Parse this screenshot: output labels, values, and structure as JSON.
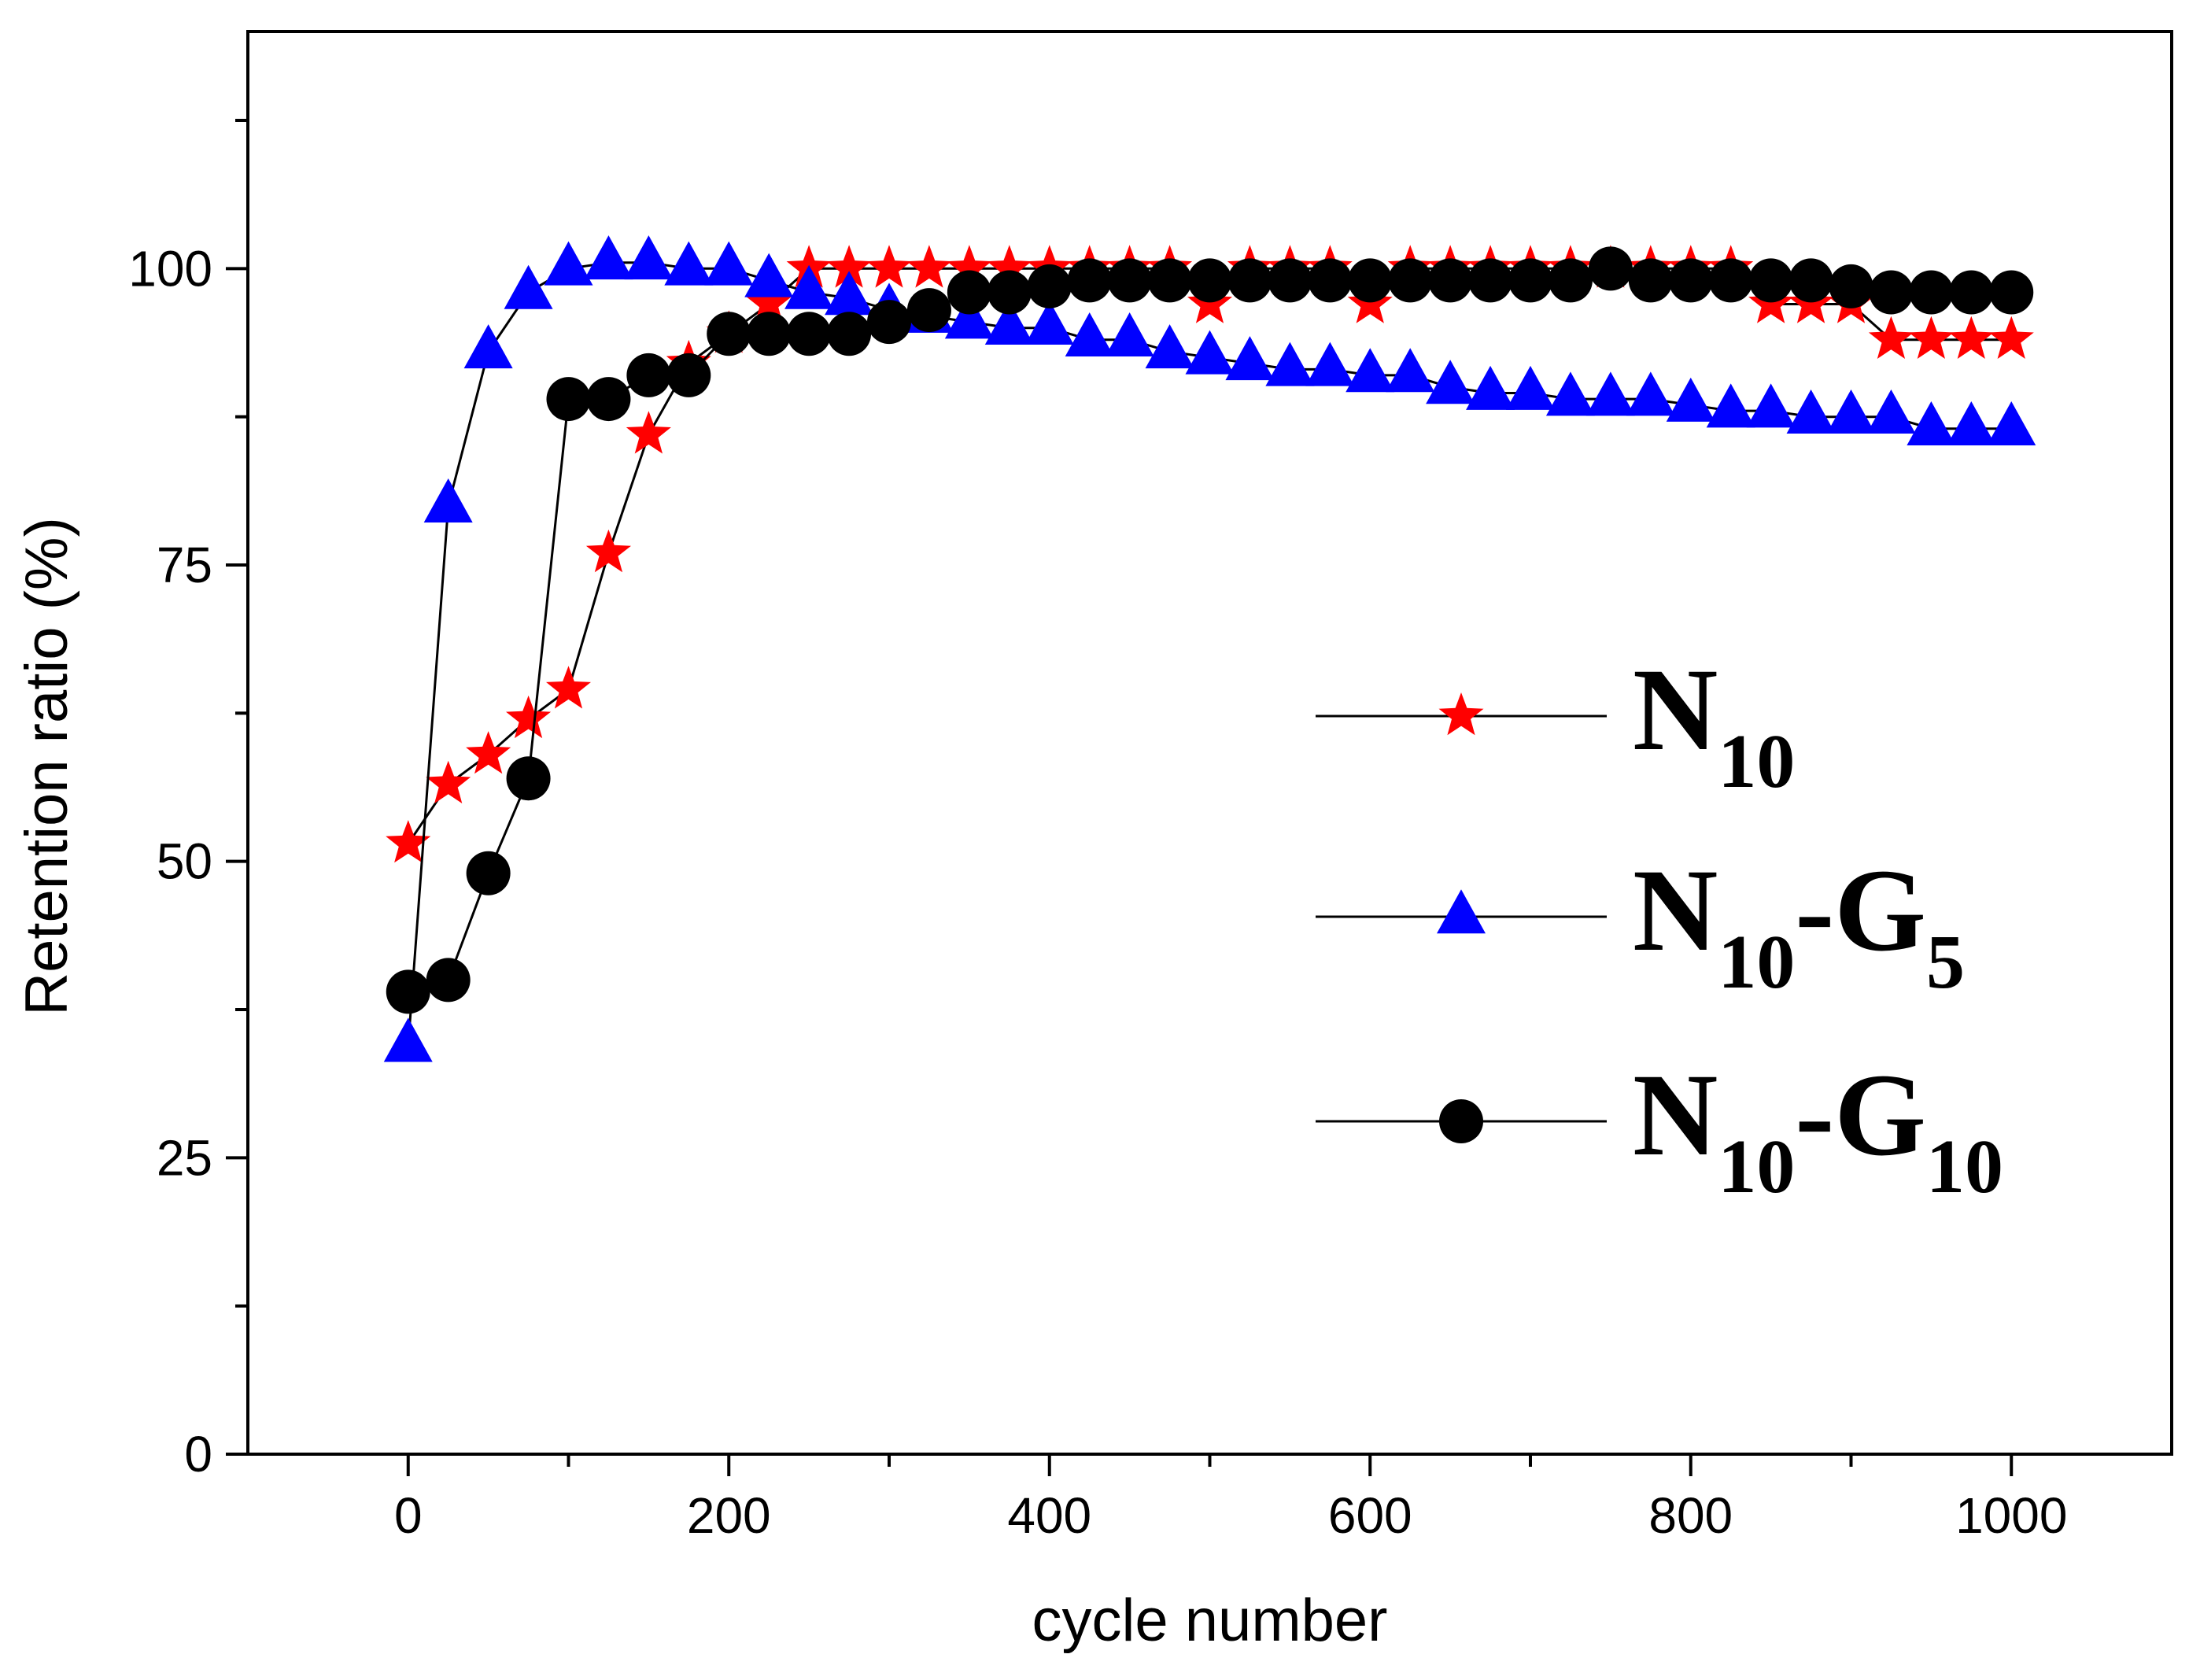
{
  "chart_data": {
    "type": "line",
    "xlabel": "cycle number",
    "ylabel": "Retention ratio (%)",
    "xlim": [
      -100,
      1100
    ],
    "ylim": [
      0,
      120
    ],
    "xticks": [
      0,
      200,
      400,
      600,
      800,
      1000
    ],
    "xtick_labels": [
      "0",
      "200",
      "400",
      "600",
      "800",
      "1000"
    ],
    "yticks": [
      0,
      25,
      50,
      75,
      100
    ],
    "ytick_labels": [
      "0",
      "25",
      "50",
      "75",
      "100"
    ],
    "legend_position": "right-middle",
    "x": [
      0,
      25,
      50,
      75,
      100,
      125,
      150,
      175,
      200,
      225,
      250,
      275,
      300,
      325,
      350,
      375,
      400,
      425,
      450,
      475,
      500,
      525,
      550,
      575,
      600,
      625,
      650,
      675,
      700,
      725,
      750,
      775,
      800,
      825,
      850,
      875,
      900,
      925,
      950,
      975,
      1000
    ],
    "series": [
      {
        "name": "N10",
        "legend_main": "N",
        "legend_sub1": "10",
        "legend_mid": "",
        "legend_sub2": "",
        "color": "#ff0000",
        "marker": "star",
        "values": [
          51.5,
          56.5,
          59,
          62,
          64.5,
          76,
          86,
          92,
          94.5,
          97,
          100,
          100,
          100,
          100,
          100,
          100,
          100,
          100,
          100,
          100,
          97,
          100,
          100,
          100,
          97,
          100,
          100,
          100,
          100,
          100,
          100,
          100,
          100,
          100,
          97,
          97,
          97,
          94,
          94,
          94,
          94
        ]
      },
      {
        "name": "N10-G5",
        "legend_main": "N",
        "legend_sub1": "10",
        "legend_mid": "-G",
        "legend_sub2": "5",
        "color": "#0000ff",
        "marker": "triangle",
        "values": [
          34.5,
          80,
          93,
          98,
          100,
          100.5,
          100.5,
          100,
          100,
          99,
          98,
          97.5,
          96.5,
          96,
          95.5,
          95,
          95,
          94,
          94,
          93,
          92.5,
          92,
          91.5,
          91.5,
          91,
          91,
          90,
          89.5,
          89.5,
          89,
          89,
          89,
          88.5,
          88,
          88,
          87.5,
          87.5,
          87.5,
          86.5,
          86.5,
          86.5
        ]
      },
      {
        "name": "N10-G10",
        "legend_main": "N",
        "legend_sub1": "10",
        "legend_mid": "-G",
        "legend_sub2": "10",
        "color": "#000000",
        "marker": "circle",
        "values": [
          39,
          40,
          49,
          57,
          89,
          89,
          91,
          91,
          94.5,
          94.5,
          94.5,
          94.5,
          95.5,
          96.5,
          98,
          98,
          98.5,
          99,
          99,
          99,
          99,
          99,
          99,
          99,
          99,
          99,
          99,
          99,
          99,
          99,
          100,
          99,
          99,
          99,
          99,
          99,
          98.5,
          98,
          98,
          98,
          98
        ]
      }
    ]
  }
}
